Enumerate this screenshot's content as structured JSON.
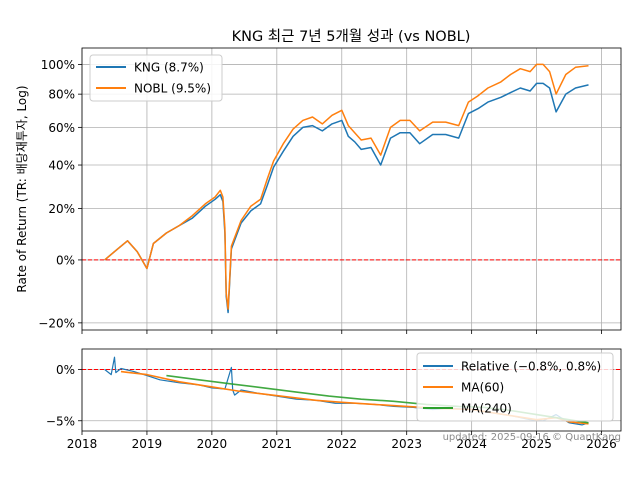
{
  "title": "KNG 최근 7년 5개월 성과 (vs NOBL)",
  "footer": "updated: 2025-09-16 © QuantKang",
  "colors": {
    "kng": "#1f77b4",
    "nobl": "#ff7f0e",
    "ma240": "#2ca02c",
    "zero_line": "#ff0000",
    "grid": "#b0b0b0"
  },
  "chart_data": [
    {
      "type": "line",
      "ylabel": "Rate of Return (TR: 배당재투자, Log)",
      "yscale": "log(1+r)",
      "ylim": [
        -22,
        112
      ],
      "xlim": [
        2018.0,
        2026.3
      ],
      "y_ticks": [
        -20,
        0,
        20,
        40,
        60,
        80,
        100
      ],
      "y_tick_labels": [
        "−20%",
        "0%",
        "20%",
        "40%",
        "60%",
        "80%",
        "100%"
      ],
      "grid": true,
      "legend_position": "top-left",
      "series": [
        {
          "name": "KNG (8.7%)",
          "x": [
            2018.35,
            2018.55,
            2018.7,
            2018.85,
            2019.0,
            2019.1,
            2019.3,
            2019.5,
            2019.7,
            2019.9,
            2020.05,
            2020.13,
            2020.17,
            2020.2,
            2020.22,
            2020.25,
            2020.3,
            2020.45,
            2020.6,
            2020.75,
            2020.85,
            2020.95,
            2021.1,
            2021.25,
            2021.4,
            2021.55,
            2021.7,
            2021.85,
            2022.0,
            2022.1,
            2022.2,
            2022.3,
            2022.45,
            2022.6,
            2022.75,
            2022.9,
            2023.05,
            2023.2,
            2023.4,
            2023.6,
            2023.8,
            2023.95,
            2024.1,
            2024.25,
            2024.45,
            2024.6,
            2024.75,
            2024.9,
            2025.0,
            2025.1,
            2025.2,
            2025.3,
            2025.45,
            2025.6,
            2025.8
          ],
          "y": [
            0,
            4,
            7,
            3,
            -3,
            6,
            10,
            13,
            16,
            21,
            24,
            26,
            23,
            10,
            -12,
            -17,
            4,
            14,
            19,
            22,
            30,
            39,
            47,
            55,
            60,
            61,
            58,
            62,
            64,
            55,
            52,
            48,
            49,
            40,
            54,
            57,
            57,
            51,
            56,
            56,
            54,
            68,
            71,
            75,
            78,
            81,
            84,
            82,
            87,
            87,
            84,
            69,
            80,
            84,
            86
          ]
        },
        {
          "name": "NOBL (9.5%)",
          "x": [
            2018.35,
            2018.55,
            2018.7,
            2018.85,
            2019.0,
            2019.1,
            2019.3,
            2019.5,
            2019.7,
            2019.9,
            2020.05,
            2020.13,
            2020.17,
            2020.2,
            2020.22,
            2020.25,
            2020.3,
            2020.45,
            2020.6,
            2020.75,
            2020.85,
            2020.95,
            2021.1,
            2021.25,
            2021.4,
            2021.55,
            2021.7,
            2021.85,
            2022.0,
            2022.1,
            2022.2,
            2022.3,
            2022.45,
            2022.6,
            2022.75,
            2022.9,
            2023.05,
            2023.2,
            2023.4,
            2023.6,
            2023.8,
            2023.95,
            2024.1,
            2024.25,
            2024.45,
            2024.6,
            2024.75,
            2024.9,
            2025.0,
            2025.1,
            2025.2,
            2025.3,
            2025.45,
            2025.6,
            2025.8
          ],
          "y": [
            0,
            4,
            7,
            3,
            -3,
            6,
            10,
            13,
            17,
            22,
            25,
            28,
            25,
            12,
            -11,
            -16,
            5,
            15,
            21,
            24,
            33,
            42,
            51,
            59,
            64,
            66,
            62,
            67,
            70,
            61,
            57,
            53,
            54,
            45,
            60,
            64,
            64,
            58,
            63,
            63,
            61,
            75,
            79,
            84,
            88,
            93,
            97,
            95,
            100,
            100,
            95,
            80,
            93,
            98,
            99
          ]
        }
      ]
    },
    {
      "type": "line",
      "ylim": [
        -6,
        2
      ],
      "y_ticks": [
        0,
        -5
      ],
      "y_tick_labels": [
        "0%",
        "−5%"
      ],
      "x_ticks": [
        2018,
        2019,
        2020,
        2021,
        2022,
        2023,
        2024,
        2025,
        2026
      ],
      "x_tick_labels": [
        "2018",
        "2019",
        "2020",
        "2021",
        "2022",
        "2023",
        "2024",
        "2025",
        "2026"
      ],
      "grid": true,
      "legend_position": "top-right",
      "series": [
        {
          "name": "Relative (−0.8%, 0.8%)",
          "x": [
            2018.35,
            2018.45,
            2018.5,
            2018.52,
            2018.6,
            2018.8,
            2019.0,
            2019.2,
            2019.5,
            2019.8,
            2020.0,
            2020.2,
            2020.3,
            2020.32,
            2020.35,
            2020.45,
            2020.7,
            2021.0,
            2021.3,
            2021.6,
            2021.9,
            2022.2,
            2022.5,
            2022.8,
            2023.1,
            2023.4,
            2023.7,
            2024.0,
            2024.3,
            2024.6,
            2024.9,
            2025.1,
            2025.3,
            2025.5,
            2025.7,
            2025.8
          ],
          "y": [
            0,
            -0.5,
            1.2,
            -0.3,
            0.1,
            -0.2,
            -0.6,
            -1.0,
            -1.3,
            -1.5,
            -1.8,
            -1.9,
            0.2,
            -2.0,
            -2.5,
            -2.0,
            -2.3,
            -2.6,
            -2.9,
            -3.0,
            -3.3,
            -3.3,
            -3.4,
            -3.6,
            -3.7,
            -3.9,
            -3.8,
            -3.9,
            -4.2,
            -4.5,
            -4.9,
            -5.0,
            -4.4,
            -5.2,
            -5.4,
            -5.2
          ]
        },
        {
          "name": "MA(60)",
          "x": [
            2018.6,
            2019.0,
            2019.5,
            2020.0,
            2020.4,
            2020.8,
            2021.2,
            2021.6,
            2022.0,
            2022.5,
            2023.0,
            2023.5,
            2024.0,
            2024.5,
            2025.0,
            2025.3,
            2025.5,
            2025.8
          ],
          "y": [
            -0.2,
            -0.5,
            -1.2,
            -1.7,
            -2.1,
            -2.4,
            -2.7,
            -3.0,
            -3.2,
            -3.4,
            -3.6,
            -3.8,
            -3.9,
            -4.4,
            -4.9,
            -4.7,
            -5.1,
            -5.3
          ]
        },
        {
          "name": "MA(240)",
          "x": [
            2019.3,
            2019.8,
            2020.3,
            2020.8,
            2021.3,
            2021.8,
            2022.3,
            2022.8,
            2023.3,
            2023.8,
            2024.2,
            2024.6,
            2025.0,
            2025.4,
            2025.8
          ],
          "y": [
            -0.6,
            -1.0,
            -1.4,
            -1.8,
            -2.2,
            -2.6,
            -2.9,
            -3.1,
            -3.4,
            -3.6,
            -3.7,
            -4.0,
            -4.4,
            -4.8,
            -5.2
          ]
        }
      ]
    }
  ]
}
